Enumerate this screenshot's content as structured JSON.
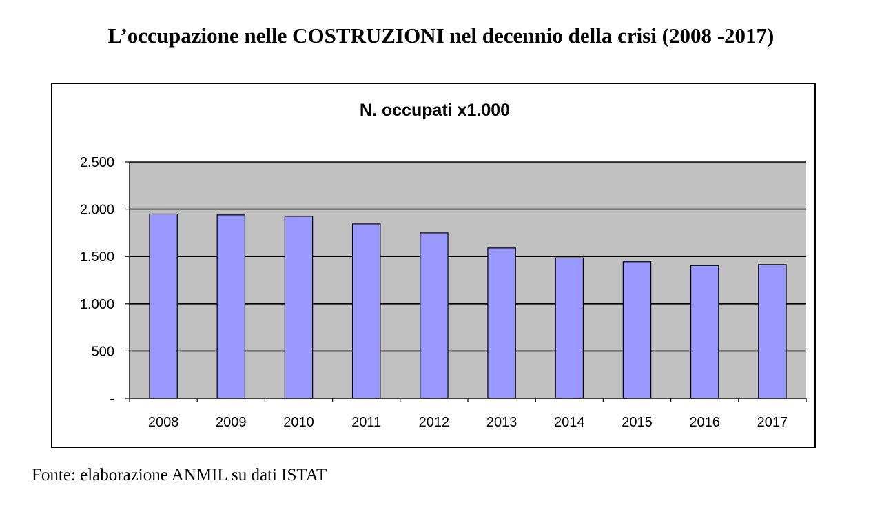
{
  "page": {
    "title": "L’occupazione nelle COSTRUZIONI nel decennio della crisi (2008 -2017)",
    "source": "Fonte: elaborazione ANMIL su dati ISTAT"
  },
  "colors": {
    "bar_fill": "#9999FF",
    "plot_background": "#C0C0C0",
    "gridline": "#000000"
  },
  "chart_data": {
    "type": "bar",
    "title": "N. occupati x1.000",
    "categories": [
      "2008",
      "2009",
      "2010",
      "2011",
      "2012",
      "2013",
      "2014",
      "2015",
      "2016",
      "2017"
    ],
    "values": [
      1950,
      1940,
      1925,
      1845,
      1750,
      1590,
      1485,
      1445,
      1405,
      1415
    ],
    "ylim": [
      0,
      2500
    ],
    "yticks": [
      0,
      500,
      1000,
      1500,
      2000,
      2500
    ],
    "ytick_labels": [
      "-",
      "500",
      "1.000",
      "1.500",
      "2.000",
      "2.500"
    ],
    "grid": true,
    "legend": "none"
  }
}
